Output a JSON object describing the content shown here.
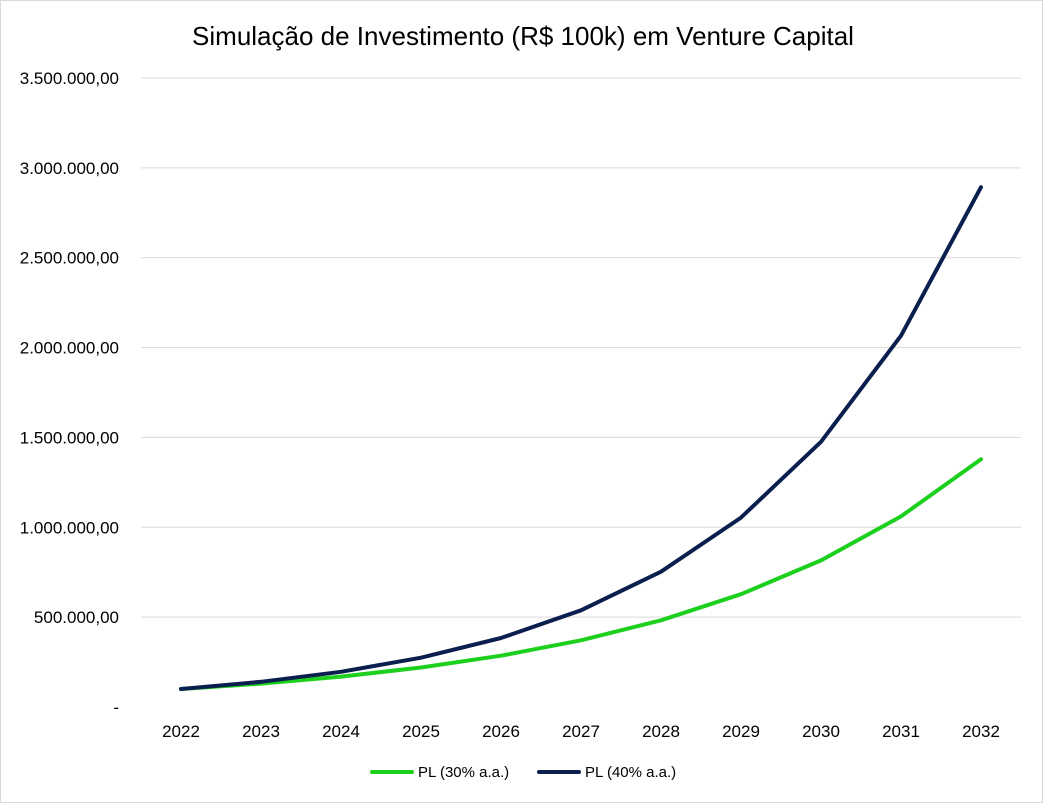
{
  "chart_data": {
    "type": "line",
    "title": "Simulação de Investimento (R$ 100k) em Venture Capital",
    "xlabel": "",
    "ylabel": "",
    "categories": [
      "2022",
      "2023",
      "2024",
      "2025",
      "2026",
      "2027",
      "2028",
      "2029",
      "2030",
      "2031",
      "2032"
    ],
    "ylim": [
      0,
      3500000
    ],
    "y_ticks": [
      {
        "value": 0,
        "label": "-"
      },
      {
        "value": 500000,
        "label": "500.000,00"
      },
      {
        "value": 1000000,
        "label": "1.000.000,00"
      },
      {
        "value": 1500000,
        "label": "1.500.000,00"
      },
      {
        "value": 2000000,
        "label": "2.000.000,00"
      },
      {
        "value": 2500000,
        "label": "2.500.000,00"
      },
      {
        "value": 3000000,
        "label": "3.000.000,00"
      },
      {
        "value": 3500000,
        "label": "3.500.000,00"
      }
    ],
    "grid": true,
    "legend_position": "bottom",
    "series": [
      {
        "name": "PL (30% a.a.)",
        "color": "#1ed01e",
        "values": [
          100000,
          130000,
          169000,
          219700,
          285610,
          371293,
          482681,
          627485,
          815731,
          1060450,
          1378585
        ]
      },
      {
        "name": "PL (40% a.a.)",
        "color": "#0b1f4e",
        "values": [
          100000,
          140000,
          196000,
          274400,
          384160,
          537824,
          752954,
          1054135,
          1475789,
          2066105,
          2892547
        ]
      }
    ]
  }
}
